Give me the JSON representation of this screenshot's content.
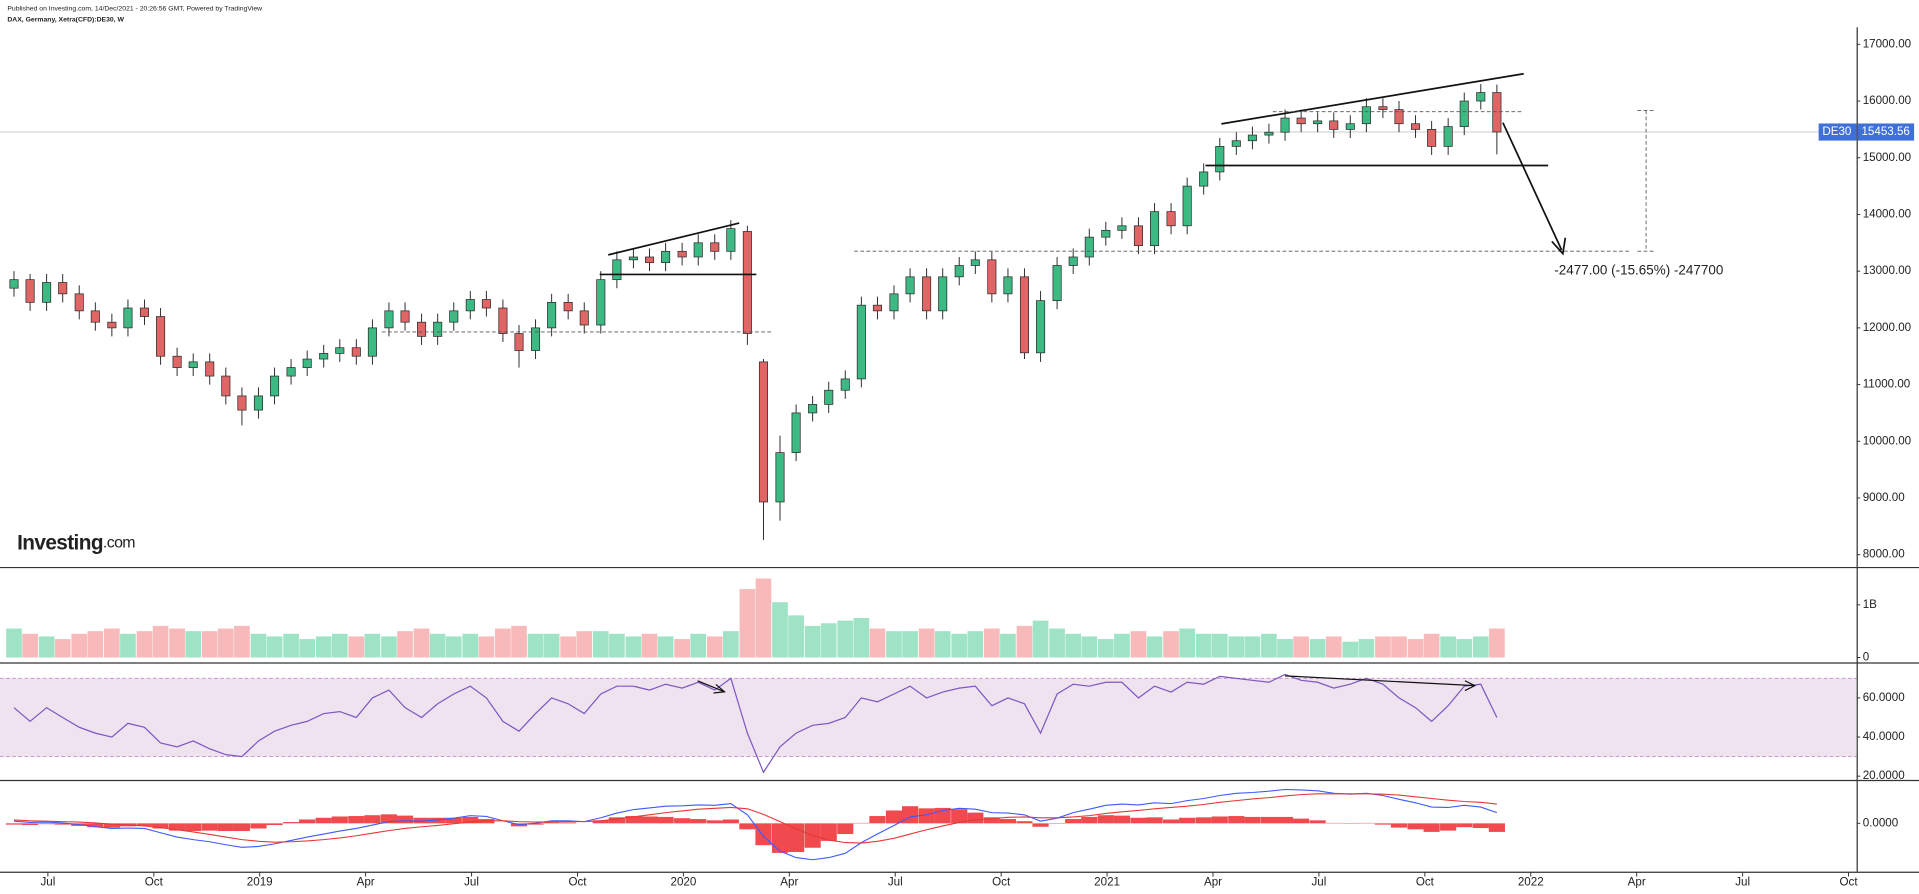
{
  "header": {
    "published": "Published on Investing.com, 14/Dec/2021 - 20:26:56 GMT, Powered by TradingView"
  },
  "logo": [
    "Investing",
    ".com"
  ],
  "chart_data": [
    {
      "type": "candlestick",
      "title": "DAX, Germany, Xetra(CFD):DE30, W",
      "symbol_label": "DE30",
      "annotation": "-2477.00 (-15.65%) -247700",
      "color_up": "#3dba83",
      "color_down": "#e06666",
      "xlim": [
        2018.387,
        2022.769
      ],
      "ylim": [
        7784,
        17302
      ],
      "xticks": [
        {
          "value": 2018.5,
          "label": "Jul"
        },
        {
          "value": 2018.75,
          "label": "Oct"
        },
        {
          "value": 2019,
          "label": "2019"
        },
        {
          "value": 2019.25,
          "label": "Apr"
        },
        {
          "value": 2019.5,
          "label": "Jul"
        },
        {
          "value": 2019.75,
          "label": "Oct"
        },
        {
          "value": 2020,
          "label": "2020"
        },
        {
          "value": 2020.25,
          "label": "Apr"
        },
        {
          "value": 2020.5,
          "label": "Jul"
        },
        {
          "value": 2020.75,
          "label": "Oct"
        },
        {
          "value": 2021,
          "label": "2021"
        },
        {
          "value": 2021.25,
          "label": "Apr"
        },
        {
          "value": 2021.5,
          "label": "Jul"
        },
        {
          "value": 2021.75,
          "label": "Oct"
        },
        {
          "value": 2022,
          "label": "2022"
        },
        {
          "value": 2022.25,
          "label": "Apr"
        },
        {
          "value": 2022.5,
          "label": "Jul"
        },
        {
          "value": 2022.75,
          "label": "Oct"
        }
      ],
      "yticks": [
        {
          "value": 17000,
          "label": "17000.00"
        },
        {
          "value": 16000,
          "label": "16000.00"
        },
        {
          "value": 15000,
          "label": "15000.00"
        },
        {
          "value": 14000,
          "label": "14000.00"
        },
        {
          "value": 13000,
          "label": "13000.00"
        },
        {
          "value": 12000,
          "label": "12000.00"
        },
        {
          "value": 11000,
          "label": "11000.00"
        },
        {
          "value": 10000,
          "label": "10000.00"
        },
        {
          "value": 9000,
          "label": "9000.00"
        },
        {
          "value": 8000,
          "label": "8000.00"
        }
      ],
      "x": [
        2018.42,
        2018.458,
        2018.497,
        2018.535,
        2018.574,
        2018.612,
        2018.651,
        2018.689,
        2018.728,
        2018.766,
        2018.805,
        2018.843,
        2018.882,
        2018.92,
        2018.958,
        2018.997,
        2019.035,
        2019.074,
        2019.112,
        2019.151,
        2019.189,
        2019.228,
        2019.266,
        2019.305,
        2019.343,
        2019.382,
        2019.42,
        2019.458,
        2019.497,
        2019.535,
        2019.574,
        2019.612,
        2019.651,
        2019.689,
        2019.728,
        2019.766,
        2019.805,
        2019.843,
        2019.882,
        2019.92,
        2019.958,
        2019.997,
        2020.035,
        2020.074,
        2020.112,
        2020.151,
        2020.189,
        2020.228,
        2020.266,
        2020.305,
        2020.343,
        2020.382,
        2020.42,
        2020.458,
        2020.497,
        2020.535,
        2020.574,
        2020.612,
        2020.651,
        2020.689,
        2020.728,
        2020.766,
        2020.805,
        2020.843,
        2020.882,
        2020.92,
        2020.958,
        2020.997,
        2021.035,
        2021.074,
        2021.112,
        2021.151,
        2021.189,
        2021.228,
        2021.266,
        2021.305,
        2021.343,
        2021.382,
        2021.42,
        2021.458,
        2021.497,
        2021.535,
        2021.574,
        2021.612,
        2021.651,
        2021.689,
        2021.728,
        2021.766,
        2021.805,
        2021.843,
        2021.882,
        2021.92
      ],
      "open": [
        12700,
        12850,
        12450,
        12800,
        12600,
        12300,
        12100,
        12000,
        12350,
        12200,
        11500,
        11300,
        11400,
        11150,
        10800,
        10550,
        10800,
        11150,
        11300,
        11450,
        11550,
        11650,
        11500,
        12000,
        12300,
        12100,
        11850,
        12100,
        12300,
        12500,
        12350,
        11900,
        11600,
        12000,
        12450,
        12300,
        12050,
        12850,
        13200,
        13250,
        13150,
        13350,
        13250,
        13500,
        13350,
        13700,
        11400,
        8930,
        9800,
        10500,
        10650,
        10900,
        11100,
        12400,
        12300,
        12600,
        12900,
        12300,
        12900,
        13100,
        13200,
        12600,
        12900,
        11560,
        12480,
        13100,
        13250,
        13600,
        13720,
        13800,
        13450,
        14050,
        13800,
        14500,
        14750,
        15200,
        15300,
        15400,
        15450,
        15700,
        15600,
        15650,
        15500,
        15600,
        15900,
        15850,
        15600,
        15500,
        15200,
        15550,
        16000,
        16150
      ],
      "high": [
        13000,
        12950,
        12950,
        12950,
        12750,
        12450,
        12250,
        12500,
        12500,
        12350,
        11650,
        11550,
        11550,
        11300,
        10950,
        10950,
        11300,
        11450,
        11600,
        11700,
        11800,
        11800,
        12150,
        12450,
        12450,
        12250,
        12250,
        12450,
        12650,
        12650,
        12500,
        12050,
        12150,
        12600,
        12600,
        12450,
        13000,
        13350,
        13400,
        13400,
        13500,
        13500,
        13650,
        13650,
        13900,
        13800,
        11450,
        10100,
        10650,
        10800,
        11050,
        11250,
        12550,
        12550,
        12750,
        13050,
        13050,
        13050,
        13250,
        13350,
        13350,
        13050,
        13050,
        12650,
        13250,
        13400,
        13750,
        13870,
        13950,
        13950,
        14200,
        14200,
        14650,
        14900,
        15350,
        15450,
        15550,
        15600,
        15850,
        15850,
        15800,
        15800,
        15750,
        16050,
        16050,
        16000,
        15750,
        15650,
        15700,
        16150,
        16300,
        16290
      ],
      "low": [
        12550,
        12300,
        12300,
        12450,
        12150,
        11950,
        11850,
        11850,
        12050,
        11350,
        11150,
        11150,
        11000,
        10650,
        10280,
        10400,
        10650,
        11000,
        11150,
        11300,
        11400,
        11350,
        11350,
        11850,
        11950,
        11700,
        11700,
        11950,
        12150,
        12200,
        11750,
        11300,
        11450,
        11850,
        12150,
        11900,
        11900,
        12700,
        13050,
        13000,
        13000,
        13100,
        13100,
        13200,
        13200,
        11700,
        8260,
        8600,
        9650,
        10350,
        10500,
        10750,
        10950,
        12150,
        12150,
        12450,
        12150,
        12150,
        12750,
        12950,
        12450,
        12450,
        11450,
        11400,
        12330,
        12950,
        13100,
        13450,
        13570,
        13300,
        13300,
        13650,
        13650,
        14350,
        14600,
        15050,
        15150,
        15250,
        15300,
        15450,
        15450,
        15350,
        15350,
        15450,
        15700,
        15450,
        15350,
        15050,
        15050,
        15400,
        15850,
        15060
      ],
      "close": [
        12850,
        12450,
        12800,
        12600,
        12300,
        12100,
        12000,
        12350,
        12200,
        11500,
        11300,
        11400,
        11150,
        10800,
        10550,
        10800,
        11150,
        11300,
        11450,
        11550,
        11650,
        11500,
        12000,
        12300,
        12100,
        11850,
        12100,
        12300,
        12500,
        12350,
        11900,
        11600,
        12000,
        12450,
        12300,
        12050,
        12850,
        13200,
        13250,
        13150,
        13350,
        13250,
        13500,
        13350,
        13750,
        11900,
        8930,
        9800,
        10500,
        10650,
        10900,
        11100,
        12400,
        12300,
        12600,
        12900,
        12300,
        12900,
        13100,
        13200,
        12600,
        12900,
        11560,
        12480,
        13100,
        13250,
        13600,
        13720,
        13800,
        13450,
        14050,
        13800,
        14500,
        14750,
        15200,
        15300,
        15400,
        15450,
        15700,
        15600,
        15650,
        15500,
        15600,
        15900,
        15850,
        15600,
        15500,
        15200,
        15550,
        16000,
        16150,
        15453.56
      ]
    },
    {
      "type": "bar",
      "color_up": "#9fe3c6",
      "color_down": "#f7b9b9",
      "ylim": [
        0,
        1.65
      ],
      "yticks": [
        0,
        {
          "value": 1,
          "label": "1B"
        }
      ],
      "values": [
        0.55,
        0.45,
        0.4,
        0.35,
        0.45,
        0.5,
        0.55,
        0.45,
        0.5,
        0.6,
        0.55,
        0.5,
        0.5,
        0.55,
        0.6,
        0.45,
        0.4,
        0.45,
        0.35,
        0.4,
        0.45,
        0.4,
        0.45,
        0.4,
        0.5,
        0.55,
        0.45,
        0.4,
        0.45,
        0.4,
        0.55,
        0.6,
        0.45,
        0.45,
        0.4,
        0.5,
        0.5,
        0.45,
        0.4,
        0.45,
        0.4,
        0.35,
        0.45,
        0.4,
        0.5,
        1.3,
        1.5,
        1.05,
        0.8,
        0.6,
        0.65,
        0.7,
        0.75,
        0.55,
        0.5,
        0.5,
        0.55,
        0.5,
        0.45,
        0.5,
        0.55,
        0.45,
        0.6,
        0.7,
        0.55,
        0.45,
        0.4,
        0.35,
        0.45,
        0.5,
        0.4,
        0.5,
        0.55,
        0.45,
        0.45,
        0.4,
        0.4,
        0.45,
        0.35,
        0.4,
        0.35,
        0.4,
        0.3,
        0.35,
        0.4,
        0.4,
        0.35,
        0.45,
        0.4,
        0.35,
        0.4,
        0.55
      ]
    },
    {
      "type": "line",
      "color": "#7e57c2",
      "band": [
        30,
        70
      ],
      "band_color": "#efe3f0",
      "ylim": [
        18.1,
        76.9
      ],
      "yticks": [
        {
          "value": 60,
          "label": "60.0000"
        },
        {
          "value": 40,
          "label": "40.0000"
        },
        {
          "value": 20,
          "label": "20.0000"
        }
      ],
      "values": [
        55,
        48,
        55,
        50,
        45,
        42,
        40,
        47,
        45,
        37,
        35,
        38,
        34,
        31,
        30,
        38,
        43,
        46,
        48,
        52,
        53,
        50,
        60,
        64,
        55,
        50,
        57,
        62,
        66,
        60,
        48,
        43,
        52,
        60,
        57,
        52,
        62,
        66,
        66,
        64,
        67,
        65,
        68,
        64,
        70,
        42,
        22,
        35,
        42,
        46,
        47,
        50,
        60,
        58,
        62,
        66,
        60,
        63,
        65,
        66,
        56,
        60,
        57,
        42,
        62,
        67,
        66,
        68,
        68,
        60,
        66,
        63,
        68,
        67,
        71,
        70,
        69,
        68,
        72,
        69,
        68,
        65,
        67,
        70,
        67,
        60,
        55,
        48,
        56,
        66,
        67,
        50
      ]
    },
    {
      "type": "macd",
      "color": "#f0494e",
      "ylim": [
        -1100,
        900
      ],
      "yticks": [
        {
          "value": 0,
          "label": "0.0000"
        }
      ],
      "values": [
        -30,
        -40,
        -20,
        -30,
        -60,
        -90,
        -100,
        -70,
        -60,
        -120,
        -170,
        -180,
        -170,
        -180,
        -180,
        -120,
        -40,
        30,
        90,
        130,
        160,
        170,
        190,
        210,
        180,
        130,
        130,
        130,
        150,
        100,
        0,
        -70,
        -30,
        25,
        20,
        0,
        70,
        140,
        170,
        160,
        150,
        120,
        100,
        70,
        90,
        -140,
        -510,
        -690,
        -670,
        -570,
        -410,
        -250,
        10,
        170,
        300,
        400,
        350,
        360,
        330,
        250,
        140,
        100,
        50,
        -80,
        -10,
        100,
        150,
        190,
        180,
        130,
        140,
        90,
        130,
        140,
        160,
        170,
        150,
        150,
        150,
        110,
        70,
        10,
        -10,
        10,
        -30,
        -100,
        -140,
        -200,
        -170,
        -90,
        -110,
        -200
      ],
      "series": [
        {
          "color": "#3d5afe",
          "values": [
            50,
            20,
            30,
            10,
            -30,
            -80,
            -120,
            -110,
            -120,
            -220,
            -320,
            -380,
            -430,
            -500,
            -560,
            -540,
            -480,
            -400,
            -320,
            -250,
            -180,
            -120,
            -40,
            40,
            60,
            50,
            80,
            120,
            180,
            160,
            60,
            -30,
            0,
            60,
            60,
            40,
            130,
            240,
            320,
            360,
            400,
            410,
            430,
            420,
            460,
            200,
            -300,
            -650,
            -800,
            -850,
            -800,
            -700,
            -450,
            -250,
            -50,
            150,
            200,
            300,
            350,
            330,
            250,
            240,
            200,
            50,
            120,
            250,
            330,
            420,
            450,
            430,
            480,
            460,
            530,
            580,
            650,
            700,
            720,
            750,
            790,
            780,
            760,
            700,
            680,
            700,
            650,
            560,
            480,
            380,
            370,
            420,
            380,
            250
          ]
        },
        {
          "color": "#e53935",
          "values": [
            80,
            60,
            50,
            40,
            30,
            10,
            -20,
            -40,
            -60,
            -100,
            -150,
            -200,
            -260,
            -320,
            -380,
            -420,
            -440,
            -430,
            -410,
            -380,
            -340,
            -290,
            -230,
            -170,
            -120,
            -80,
            -50,
            -10,
            30,
            60,
            60,
            40,
            30,
            35,
            40,
            40,
            60,
            100,
            150,
            200,
            250,
            290,
            330,
            350,
            370,
            340,
            210,
            40,
            -130,
            -280,
            -390,
            -450,
            -460,
            -420,
            -350,
            -250,
            -150,
            -60,
            20,
            80,
            110,
            140,
            150,
            130,
            130,
            150,
            180,
            230,
            270,
            300,
            340,
            370,
            400,
            440,
            490,
            530,
            570,
            600,
            640,
            670,
            690,
            690,
            690,
            690,
            680,
            660,
            620,
            580,
            540,
            510,
            490,
            450
          ]
        }
      ]
    }
  ]
}
